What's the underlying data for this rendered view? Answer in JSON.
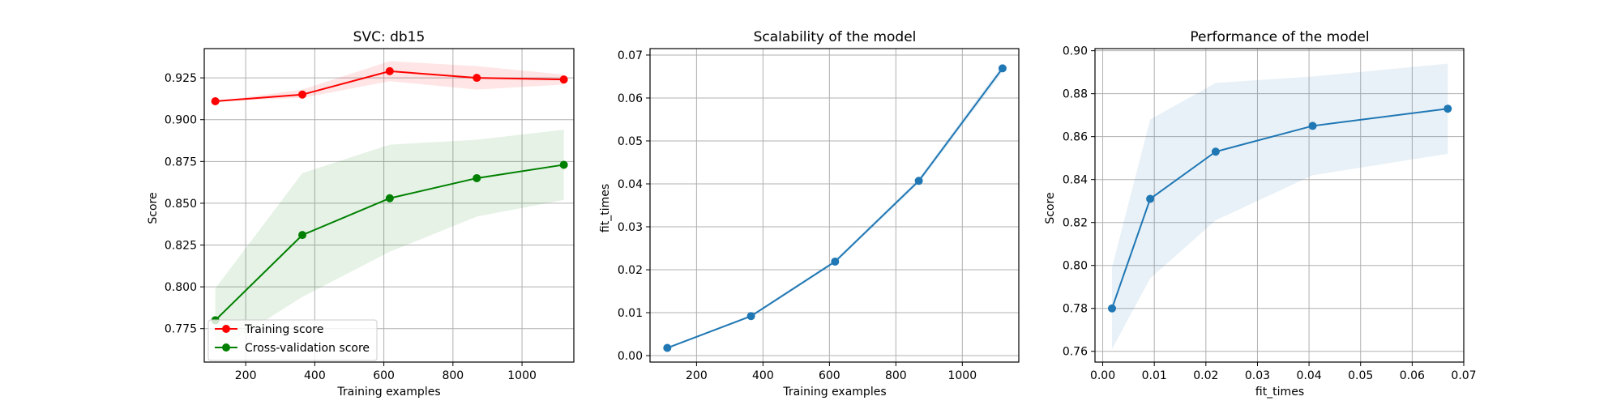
{
  "chart_data": [
    {
      "type": "line",
      "title": "SVC: db15",
      "xlabel": "Training examples",
      "ylabel": "Score",
      "xlim": [
        80,
        1150
      ],
      "ylim": [
        0.755,
        0.9425
      ],
      "xticks": [
        200,
        400,
        600,
        800,
        1000
      ],
      "xtick_labels": [
        "200",
        "400",
        "600",
        "800",
        "1000"
      ],
      "yticks": [
        0.775,
        0.8,
        0.825,
        0.85,
        0.875,
        0.9,
        0.925
      ],
      "ytick_labels": [
        "0.775",
        "0.800",
        "0.825",
        "0.850",
        "0.875",
        "0.900",
        "0.925"
      ],
      "grid": true,
      "legend": "lower-left",
      "x": [
        112,
        364,
        617,
        869,
        1121
      ],
      "series": [
        {
          "name": "Training score",
          "color": "#ff0000",
          "fill": "#ff0000",
          "values": [
            0.911,
            0.915,
            0.929,
            0.925,
            0.924
          ],
          "band_low": [
            0.911,
            0.913,
            0.923,
            0.918,
            0.921
          ],
          "band_high": [
            0.911,
            0.918,
            0.935,
            0.932,
            0.927
          ]
        },
        {
          "name": "Cross-validation score",
          "color": "#008000",
          "fill": "#008000",
          "values": [
            0.78,
            0.831,
            0.853,
            0.865,
            0.873
          ],
          "band_low": [
            0.761,
            0.794,
            0.821,
            0.842,
            0.852
          ],
          "band_high": [
            0.799,
            0.868,
            0.885,
            0.888,
            0.894
          ]
        }
      ]
    },
    {
      "type": "line",
      "title": "Scalability of the model",
      "xlabel": "Training examples",
      "ylabel": "fit_times",
      "xlim": [
        60,
        1170
      ],
      "ylim": [
        -0.0015,
        0.0715
      ],
      "xticks": [
        200,
        400,
        600,
        800,
        1000
      ],
      "xtick_labels": [
        "200",
        "400",
        "600",
        "800",
        "1000"
      ],
      "yticks": [
        0,
        0.01,
        0.02,
        0.03,
        0.04,
        0.05,
        0.06,
        0.07
      ],
      "ytick_labels": [
        "0.00",
        "0.01",
        "0.02",
        "0.03",
        "0.04",
        "0.05",
        "0.06",
        "0.07"
      ],
      "grid": true,
      "x": [
        112,
        364,
        617,
        869,
        1121
      ],
      "series": [
        {
          "color": "#1f77b4",
          "fill": "#1f77b4",
          "values": [
            0.0018,
            0.0092,
            0.0219,
            0.0407,
            0.0669
          ],
          "band_low": [
            0.0016,
            0.0089,
            0.0215,
            0.0401,
            0.066
          ],
          "band_high": [
            0.002,
            0.0095,
            0.0223,
            0.0413,
            0.0678
          ]
        }
      ]
    },
    {
      "type": "line",
      "title": "Performance of the model",
      "xlabel": "fit_times",
      "ylabel": "Score",
      "xlim": [
        -0.0015,
        0.07
      ],
      "ylim": [
        0.755,
        0.901
      ],
      "xticks": [
        0,
        0.01,
        0.02,
        0.03,
        0.04,
        0.05,
        0.06,
        0.07
      ],
      "xtick_labels": [
        "0.00",
        "0.01",
        "0.02",
        "0.03",
        "0.04",
        "0.05",
        "0.06",
        "0.07"
      ],
      "yticks": [
        0.76,
        0.78,
        0.8,
        0.82,
        0.84,
        0.86,
        0.88,
        0.9
      ],
      "ytick_labels": [
        "0.76",
        "0.78",
        "0.80",
        "0.82",
        "0.84",
        "0.86",
        "0.88",
        "0.90"
      ],
      "grid": true,
      "x": [
        0.0018,
        0.0092,
        0.0219,
        0.0407,
        0.0669
      ],
      "series": [
        {
          "color": "#1f77b4",
          "fill": "#1f77b4",
          "values": [
            0.78,
            0.831,
            0.853,
            0.865,
            0.873
          ],
          "band_low": [
            0.761,
            0.794,
            0.821,
            0.842,
            0.852
          ],
          "band_high": [
            0.799,
            0.868,
            0.885,
            0.888,
            0.894
          ]
        }
      ]
    }
  ]
}
